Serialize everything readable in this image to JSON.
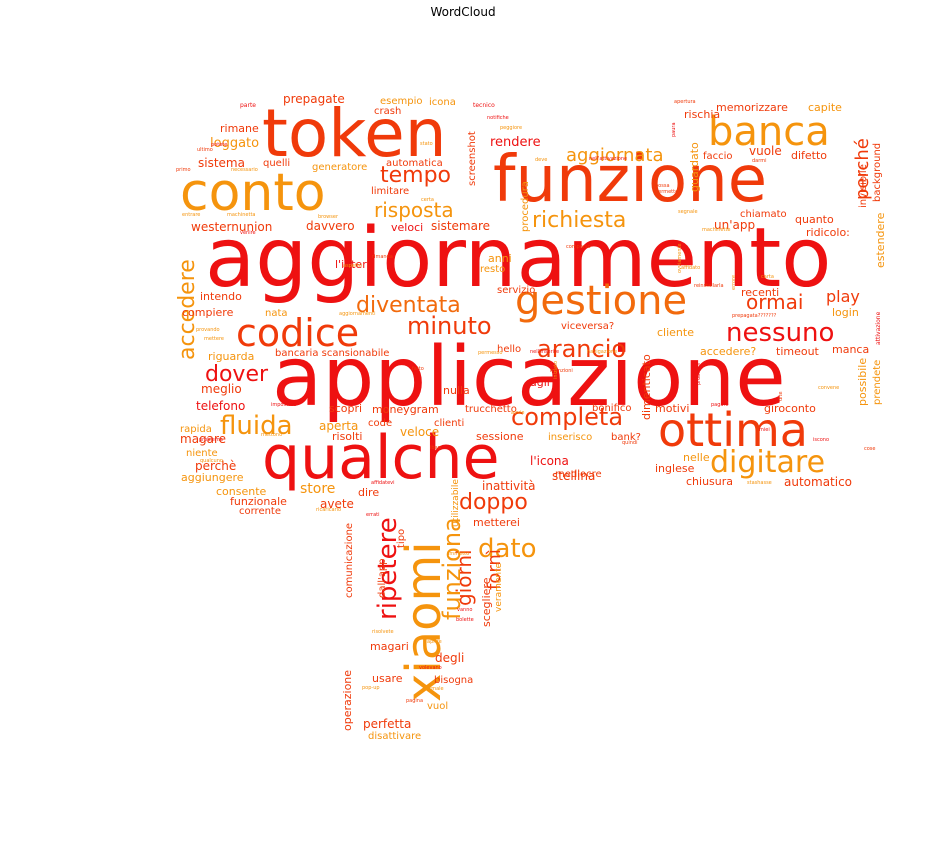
{
  "title": "WordCloud",
  "palette": {
    "red": "#ee1111",
    "redorange": "#f03a0a",
    "orange": "#f26a0c",
    "amber": "#f5940d"
  },
  "words": [
    {
      "text": "aggiornamento",
      "weight": 100,
      "color": "red"
    },
    {
      "text": "applicazione",
      "weight": 96,
      "color": "red"
    },
    {
      "text": "qualche",
      "weight": 80,
      "color": "red"
    },
    {
      "text": "funzione",
      "weight": 77,
      "color": "redorange"
    },
    {
      "text": "token",
      "weight": 75,
      "color": "redorange"
    },
    {
      "text": "conto",
      "weight": 60,
      "color": "amber"
    },
    {
      "text": "xiaomi",
      "weight": 62,
      "color": "amber"
    },
    {
      "text": "ottima",
      "weight": 57,
      "color": "redorange"
    },
    {
      "text": "gestione",
      "weight": 46,
      "color": "orange"
    },
    {
      "text": "banca",
      "weight": 45,
      "color": "amber"
    },
    {
      "text": "codice",
      "weight": 42,
      "color": "redorange"
    },
    {
      "text": "digitare",
      "weight": 34,
      "color": "amber"
    },
    {
      "text": "nessuno",
      "weight": 30,
      "color": "red"
    },
    {
      "text": "arancio",
      "weight": 29,
      "color": "redorange"
    },
    {
      "text": "completa",
      "weight": 28,
      "color": "redorange"
    },
    {
      "text": "fluida",
      "weight": 27,
      "color": "amber"
    },
    {
      "text": "minuto",
      "weight": 26,
      "color": "redorange"
    },
    {
      "text": "diventata",
      "weight": 24,
      "color": "orange"
    },
    {
      "text": "ripetere",
      "weight": 26,
      "color": "red"
    },
    {
      "text": "tempo",
      "weight": 24,
      "color": "redorange"
    },
    {
      "text": "richiesta",
      "weight": 22,
      "color": "amber"
    },
    {
      "text": "risposta",
      "weight": 22,
      "color": "amber"
    },
    {
      "text": "funziona",
      "weight": 22,
      "color": "amber"
    },
    {
      "text": "dato",
      "weight": 22,
      "color": "amber"
    },
    {
      "text": "doppo",
      "weight": 21,
      "color": "redorange"
    },
    {
      "text": "dover",
      "weight": 21,
      "color": "red"
    },
    {
      "text": "ormai",
      "weight": 20,
      "color": "redorange"
    },
    {
      "text": "accedere",
      "weight": 20,
      "color": "amber"
    },
    {
      "text": "aggiornata",
      "weight": 18,
      "color": "amber"
    },
    {
      "text": "perché",
      "weight": 18,
      "color": "redorange"
    },
    {
      "text": "giorni",
      "weight": 18,
      "color": "redorange"
    },
    {
      "text": "fornì",
      "weight": 18,
      "color": "redorange"
    },
    {
      "text": "play",
      "weight": 15,
      "color": "redorange"
    },
    {
      "text": "memorizzare",
      "weight": 11,
      "color": "redorange"
    },
    {
      "text": "capite",
      "weight": 11,
      "color": "amber"
    },
    {
      "text": "prepagate",
      "weight": 12,
      "color": "redorange"
    },
    {
      "text": "esempio",
      "weight": 11,
      "color": "amber"
    },
    {
      "text": "icona",
      "weight": 11,
      "color": "amber"
    },
    {
      "text": "crash",
      "weight": 10,
      "color": "redorange"
    },
    {
      "text": "loggato",
      "weight": 12,
      "color": "amber"
    },
    {
      "text": "rimane",
      "weight": 11,
      "color": "redorange"
    },
    {
      "text": "sistema",
      "weight": 12,
      "color": "redorange"
    },
    {
      "text": "quelli",
      "weight": 10,
      "color": "redorange"
    },
    {
      "text": "generatore",
      "weight": 10,
      "color": "amber"
    },
    {
      "text": "automatica",
      "weight": 10,
      "color": "redorange"
    },
    {
      "text": "limitare",
      "weight": 10,
      "color": "redorange"
    },
    {
      "text": "screenshot",
      "weight": 10,
      "color": "redorange"
    },
    {
      "text": "rendere",
      "weight": 12,
      "color": "red"
    },
    {
      "text": "rischia",
      "weight": 11,
      "color": "redorange"
    },
    {
      "text": "faccio",
      "weight": 10,
      "color": "redorange"
    },
    {
      "text": "vuole",
      "weight": 12,
      "color": "redorange"
    },
    {
      "text": "difetto",
      "weight": 11,
      "color": "redorange"
    },
    {
      "text": "guardato",
      "weight": 11,
      "color": "amber"
    },
    {
      "text": "westernunion",
      "weight": 12,
      "color": "redorange"
    },
    {
      "text": "davvero",
      "weight": 12,
      "color": "redorange"
    },
    {
      "text": "veloci",
      "weight": 11,
      "color": "red"
    },
    {
      "text": "sistemare",
      "weight": 12,
      "color": "redorange"
    },
    {
      "text": "un'app",
      "weight": 12,
      "color": "redorange"
    },
    {
      "text": "quanto",
      "weight": 11,
      "color": "redorange"
    },
    {
      "text": "chiamato",
      "weight": 10,
      "color": "redorange"
    },
    {
      "text": "ridicolo:",
      "weight": 11,
      "color": "redorange"
    },
    {
      "text": "estendere",
      "weight": 11,
      "color": "amber"
    },
    {
      "text": "invisibile",
      "weight": 10,
      "color": "redorange"
    },
    {
      "text": "background",
      "weight": 10,
      "color": "redorange"
    },
    {
      "text": "procedura",
      "weight": 10,
      "color": "amber"
    },
    {
      "text": "anni",
      "weight": 11,
      "color": "amber"
    },
    {
      "text": "resto",
      "weight": 10,
      "color": "amber"
    },
    {
      "text": "l'intera",
      "weight": 11,
      "color": "red"
    },
    {
      "text": "intendo",
      "weight": 11,
      "color": "redorange"
    },
    {
      "text": "servizio",
      "weight": 10,
      "color": "redorange"
    },
    {
      "text": "recenti",
      "weight": 11,
      "color": "redorange"
    },
    {
      "text": "compiere",
      "weight": 11,
      "color": "redorange"
    },
    {
      "text": "nata",
      "weight": 10,
      "color": "amber"
    },
    {
      "text": "login",
      "weight": 11,
      "color": "amber"
    },
    {
      "text": "riguarda",
      "weight": 11,
      "color": "amber"
    },
    {
      "text": "bancaria scansionabile",
      "weight": 10,
      "color": "redorange"
    },
    {
      "text": "viceversa?",
      "weight": 10,
      "color": "redorange"
    },
    {
      "text": "cliente",
      "weight": 11,
      "color": "amber"
    },
    {
      "text": "hello",
      "weight": 10,
      "color": "redorange"
    },
    {
      "text": "accedere?",
      "weight": 11,
      "color": "amber"
    },
    {
      "text": "timeout",
      "weight": 11,
      "color": "redorange"
    },
    {
      "text": "manca",
      "weight": 11,
      "color": "redorange"
    },
    {
      "text": "meglio",
      "weight": 12,
      "color": "redorange"
    },
    {
      "text": "nulla",
      "weight": 11,
      "color": "redorange"
    },
    {
      "text": "agli",
      "weight": 11,
      "color": "red"
    },
    {
      "text": "dimenticato",
      "weight": 11,
      "color": "redorange"
    },
    {
      "text": "telefono",
      "weight": 12,
      "color": "red"
    },
    {
      "text": "scopri",
      "weight": 11,
      "color": "redorange"
    },
    {
      "text": "moneygram",
      "weight": 11,
      "color": "redorange"
    },
    {
      "text": "trucchetto",
      "weight": 10,
      "color": "redorange"
    },
    {
      "text": "bonifico",
      "weight": 10,
      "color": "redorange"
    },
    {
      "text": "motivi",
      "weight": 11,
      "color": "redorange"
    },
    {
      "text": "giroconto",
      "weight": 11,
      "color": "redorange"
    },
    {
      "text": "possibile",
      "weight": 11,
      "color": "amber"
    },
    {
      "text": "prendete",
      "weight": 10,
      "color": "amber"
    },
    {
      "text": "rapida",
      "weight": 10,
      "color": "amber"
    },
    {
      "text": "aperta",
      "weight": 12,
      "color": "amber"
    },
    {
      "text": "code",
      "weight": 10,
      "color": "redorange"
    },
    {
      "text": "clienti",
      "weight": 10,
      "color": "redorange"
    },
    {
      "text": "magare",
      "weight": 12,
      "color": "redorange"
    },
    {
      "text": "risolti",
      "weight": 11,
      "color": "redorange"
    },
    {
      "text": "veloce",
      "weight": 12,
      "color": "amber"
    },
    {
      "text": "sessione",
      "weight": 11,
      "color": "redorange"
    },
    {
      "text": "inserisco",
      "weight": 10,
      "color": "amber"
    },
    {
      "text": "bank?",
      "weight": 10,
      "color": "redorange"
    },
    {
      "text": "niente",
      "weight": 10,
      "color": "amber"
    },
    {
      "text": "perchè",
      "weight": 12,
      "color": "redorange"
    },
    {
      "text": "mediocre",
      "weight": 10,
      "color": "redorange"
    },
    {
      "text": "l'icona",
      "weight": 12,
      "color": "red"
    },
    {
      "text": "nelle",
      "weight": 11,
      "color": "amber"
    },
    {
      "text": "inglese",
      "weight": 11,
      "color": "redorange"
    },
    {
      "text": "aggiungere",
      "weight": 11,
      "color": "amber"
    },
    {
      "text": "stellina",
      "weight": 12,
      "color": "redorange"
    },
    {
      "text": "chiusura",
      "weight": 11,
      "color": "redorange"
    },
    {
      "text": "automatico",
      "weight": 12,
      "color": "redorange"
    },
    {
      "text": "consente",
      "weight": 11,
      "color": "amber"
    },
    {
      "text": "funzionale",
      "weight": 11,
      "color": "redorange"
    },
    {
      "text": "store",
      "weight": 14,
      "color": "amber"
    },
    {
      "text": "avete",
      "weight": 12,
      "color": "redorange"
    },
    {
      "text": "dire",
      "weight": 11,
      "color": "redorange"
    },
    {
      "text": "inattività",
      "weight": 12,
      "color": "redorange"
    },
    {
      "text": "corrente",
      "weight": 10,
      "color": "redorange"
    },
    {
      "text": "metterei",
      "weight": 11,
      "color": "redorange"
    },
    {
      "text": "utilizzabile",
      "weight": 9,
      "color": "amber"
    },
    {
      "text": "comunicazione",
      "weight": 10,
      "color": "redorange"
    },
    {
      "text": "dall'app",
      "weight": 10,
      "color": "redorange"
    },
    {
      "text": "tipo",
      "weight": 10,
      "color": "redorange"
    },
    {
      "text": "scegliere",
      "weight": 11,
      "color": "redorange"
    },
    {
      "text": "veramente",
      "weight": 9,
      "color": "amber"
    },
    {
      "text": "degli",
      "weight": 12,
      "color": "redorange"
    },
    {
      "text": "magari",
      "weight": 11,
      "color": "redorange"
    },
    {
      "text": "operazione",
      "weight": 11,
      "color": "redorange"
    },
    {
      "text": "usare",
      "weight": 11,
      "color": "redorange"
    },
    {
      "text": "bisogna",
      "weight": 10,
      "color": "redorange"
    },
    {
      "text": "vuol",
      "weight": 10,
      "color": "amber"
    },
    {
      "text": "perfetta",
      "weight": 12,
      "color": "redorange"
    },
    {
      "text": "disattivare",
      "weight": 10,
      "color": "amber"
    },
    {
      "text": "parte",
      "weight": 6,
      "color": "red"
    },
    {
      "text": "stato",
      "weight": 5,
      "color": "amber"
    },
    {
      "text": "tecnico",
      "weight": 6,
      "color": "red"
    },
    {
      "text": "notifiche",
      "weight": 5,
      "color": "red"
    },
    {
      "text": "peggiore",
      "weight": 5,
      "color": "amber"
    },
    {
      "text": "apertura",
      "weight": 5,
      "color": "redorange"
    },
    {
      "text": "potete",
      "weight": 5,
      "color": "red"
    },
    {
      "text": "ultimo",
      "weight": 5,
      "color": "redorange"
    },
    {
      "text": "primo",
      "weight": 5,
      "color": "redorange"
    },
    {
      "text": "necessario",
      "weight": 5,
      "color": "amber"
    },
    {
      "text": "deve",
      "weight": 5,
      "color": "amber"
    },
    {
      "text": "nell'attivazione",
      "weight": 5,
      "color": "red"
    },
    {
      "text": "darmi",
      "weight": 5,
      "color": "redorange"
    },
    {
      "text": "entrare",
      "weight": 5,
      "color": "amber"
    },
    {
      "text": "machinetta",
      "weight": 5,
      "color": "amber"
    },
    {
      "text": "browser",
      "weight": 5,
      "color": "amber"
    },
    {
      "text": "certa",
      "weight": 5,
      "color": "amber"
    },
    {
      "text": "possa",
      "weight": 5,
      "color": "redorange"
    },
    {
      "text": "permette",
      "weight": 5,
      "color": "redorange"
    },
    {
      "text": "segnale",
      "weight": 5,
      "color": "amber"
    },
    {
      "text": "machinette",
      "weight": 5,
      "color": "amber"
    },
    {
      "text": "venire",
      "weight": 5,
      "color": "red"
    },
    {
      "text": "comparso",
      "weight": 5,
      "color": "redorange"
    },
    {
      "text": "rimanda",
      "weight": 5,
      "color": "redorange"
    },
    {
      "text": "aspetto",
      "weight": 5,
      "color": "amber"
    },
    {
      "text": "affidato",
      "weight": 5,
      "color": "amber"
    },
    {
      "text": "errore",
      "weight": 5,
      "color": "amber"
    },
    {
      "text": "carta",
      "weight": 5,
      "color": "amber"
    },
    {
      "text": "prepagata???????",
      "weight": 5,
      "color": "redorange"
    },
    {
      "text": "attivazione",
      "weight": 6,
      "color": "red"
    },
    {
      "text": "reinstallarla",
      "weight": 5,
      "color": "redorange"
    },
    {
      "text": "provando",
      "weight": 5,
      "color": "amber"
    },
    {
      "text": "mettere",
      "weight": 5,
      "color": "amber"
    },
    {
      "text": "aggiornamenti",
      "weight": 5,
      "color": "amber"
    },
    {
      "text": "permesso",
      "weight": 5,
      "color": "amber"
    },
    {
      "text": "nell'inserire",
      "weight": 5,
      "color": "red"
    },
    {
      "text": "navigazione",
      "weight": 5,
      "color": "amber"
    },
    {
      "text": "problemi",
      "weight": 5,
      "color": "red"
    },
    {
      "text": "convene",
      "weight": 5,
      "color": "amber"
    },
    {
      "text": "fatto",
      "weight": 5,
      "color": "redorange"
    },
    {
      "text": "pagare",
      "weight": 5,
      "color": "red"
    },
    {
      "text": "impostare",
      "weight": 5,
      "color": "red"
    },
    {
      "text": "problema",
      "weight": 5,
      "color": "red"
    },
    {
      "text": "miei",
      "weight": 5,
      "color": "red"
    },
    {
      "text": "iban",
      "weight": 5,
      "color": "redorange"
    },
    {
      "text": "cose",
      "weight": 5,
      "color": "redorange"
    },
    {
      "text": "affidatevi",
      "weight": 5,
      "color": "red"
    },
    {
      "text": "stashasse",
      "weight": 5,
      "color": "amber"
    },
    {
      "text": "ricaricario",
      "weight": 5,
      "color": "amber"
    },
    {
      "text": "errati",
      "weight": 5,
      "color": "red"
    },
    {
      "text": "immetto",
      "weight": 5,
      "color": "amber"
    },
    {
      "text": "vanno",
      "weight": 5,
      "color": "red"
    },
    {
      "text": "bolette",
      "weight": 5,
      "color": "red"
    },
    {
      "text": "risolvete",
      "weight": 5,
      "color": "amber"
    },
    {
      "text": "aprire",
      "weight": 5,
      "color": "amber"
    },
    {
      "text": "volevano",
      "weight": 5,
      "color": "red"
    },
    {
      "text": "pop-up",
      "weight": 5,
      "color": "amber"
    },
    {
      "text": "normale",
      "weight": 5,
      "color": "amber"
    },
    {
      "text": "pagina",
      "weight": 5,
      "color": "redorange"
    },
    {
      "text": "quindi",
      "weight": 5,
      "color": "redorange"
    },
    {
      "text": "qualcuno",
      "weight": 5,
      "color": "amber"
    },
    {
      "text": "avvie",
      "weight": 5,
      "color": "amber"
    },
    {
      "text": "menzioni",
      "weight": 5,
      "color": "redorange"
    },
    {
      "text": "iniziato",
      "weight": 5,
      "color": "amber"
    },
    {
      "text": "iscono",
      "weight": 5,
      "color": "red"
    },
    {
      "text": "mettono",
      "weight": 5,
      "color": "amber"
    },
    {
      "text": "dite",
      "weight": 5,
      "color": "redorange"
    },
    {
      "text": "paura",
      "weight": 5,
      "color": "red"
    },
    {
      "text": "ovviamente",
      "weight": 5,
      "color": "amber"
    }
  ]
}
